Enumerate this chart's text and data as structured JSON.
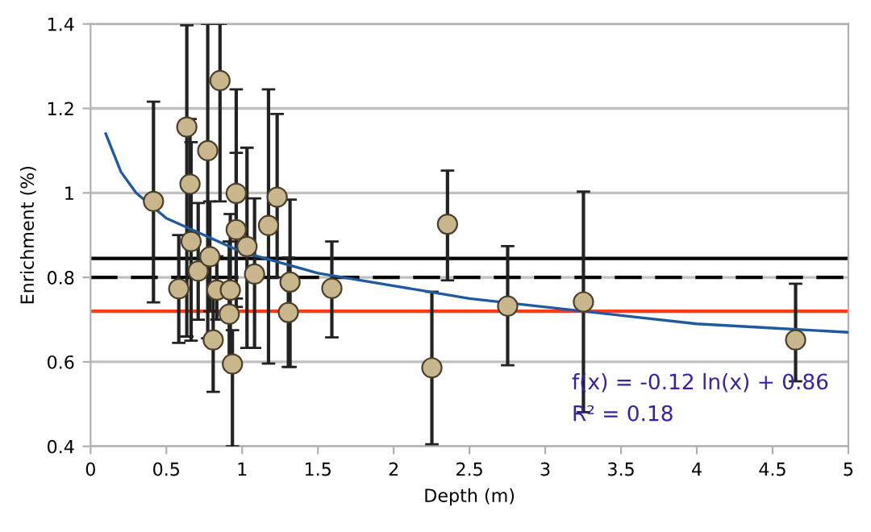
{
  "chart_data": {
    "type": "scatter",
    "xlabel": "Depth (m)",
    "ylabel": "Enrichment (%)",
    "xlim": [
      0,
      5
    ],
    "xticks": [
      0,
      0.5,
      1,
      1.5,
      2,
      2.5,
      3,
      3.5,
      4,
      4.5,
      5
    ],
    "ylim": [
      0.4,
      1.4
    ],
    "yticks": [
      0.4,
      0.6,
      0.8,
      1,
      1.2,
      1.4
    ],
    "grid": "y",
    "legend": false,
    "series": [
      {
        "color": "#c9b68c",
        "marker": "circle",
        "x": [
          0.415,
          0.582,
          0.635,
          0.656,
          0.663,
          0.71,
          0.773,
          0.787,
          0.809,
          0.833,
          0.854,
          0.915,
          0.936,
          0.961,
          0.961,
          0.922,
          1.032,
          1.082,
          1.174,
          1.231,
          1.316,
          1.305,
          1.592,
          2.252,
          2.355,
          2.752,
          3.252,
          4.652
        ],
        "values": [
          0.98,
          0.773,
          1.156,
          1.021,
          0.885,
          0.815,
          1.1,
          0.849,
          0.652,
          0.77,
          1.266,
          0.713,
          0.595,
          0.999,
          0.913,
          0.77,
          0.873,
          0.808,
          0.923,
          0.99,
          0.789,
          0.717,
          0.774,
          0.586,
          0.926,
          0.732,
          0.742,
          0.652
        ],
        "errors": [
          [
            0.741,
            1.216
          ],
          [
            0.645,
            0.9
          ],
          [
            0.66,
            1.397
          ],
          [
            0.88,
            1.175
          ],
          [
            0.65,
            1.12
          ],
          [
            0.7,
            0.976
          ],
          [
            0.656,
            1.4
          ],
          [
            0.72,
            0.98
          ],
          [
            0.529,
            0.76
          ],
          [
            0.7,
            0.85
          ],
          [
            0.98,
            1.4
          ],
          [
            0.59,
            0.885
          ],
          [
            0.4,
            0.675
          ],
          [
            0.75,
            1.245
          ],
          [
            0.73,
            1.095
          ],
          [
            0.6,
            0.95
          ],
          [
            0.633,
            1.107
          ],
          [
            0.633,
            0.987
          ],
          [
            0.596,
            1.245
          ],
          [
            0.8,
            1.187
          ],
          [
            0.588,
            0.984
          ],
          [
            0.588,
            0.847
          ],
          [
            0.658,
            0.885
          ],
          [
            0.405,
            0.766
          ],
          [
            0.793,
            1.053
          ],
          [
            0.592,
            0.874
          ],
          [
            0.481,
            1.003
          ],
          [
            0.554,
            0.785
          ]
        ]
      },
      {
        "type": "line",
        "color": "#1f5a9e",
        "marker": "none",
        "line_style": "solid",
        "x": [
          0.1,
          0.2,
          0.3,
          0.5,
          0.75,
          1,
          1.5,
          2,
          2.5,
          3,
          3.5,
          4,
          4.5,
          5
        ],
        "values": [
          1.14,
          1.05,
          1.0,
          0.94,
          0.9,
          0.86,
          0.81,
          0.78,
          0.75,
          0.73,
          0.71,
          0.69,
          0.68,
          0.67
        ]
      }
    ],
    "ref_lines": [
      {
        "axis": "y",
        "value": 0.845,
        "color": "#000000",
        "line_style": "solid"
      },
      {
        "axis": "y",
        "value": 0.8,
        "color": "#000000",
        "line_style": "dashed"
      },
      {
        "axis": "y",
        "value": 0.72,
        "color": "#ff3a1a",
        "line_style": "solid"
      }
    ],
    "annotations": [
      "f(x) = -0.12 ln(x) + 0.86",
      "R² = 0.18"
    ]
  }
}
